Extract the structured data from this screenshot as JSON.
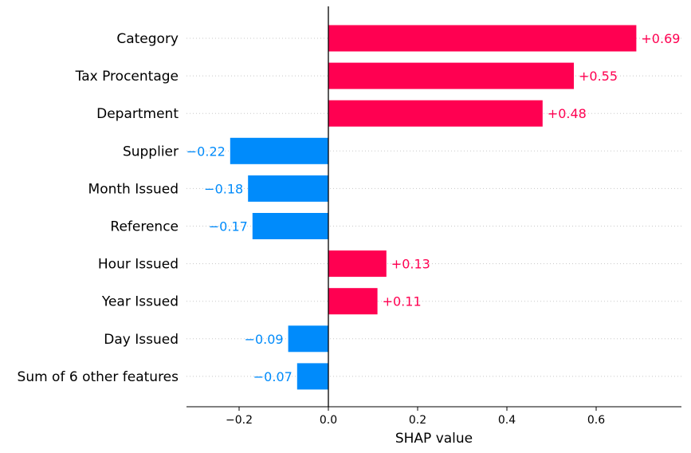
{
  "chart_data": {
    "type": "bar",
    "orientation": "horizontal",
    "xlabel": "SHAP value",
    "xlim": [
      -0.315,
      0.78
    ],
    "xticks": [
      -0.2,
      0.0,
      0.2,
      0.4,
      0.6
    ],
    "xtick_labels": [
      "−0.2",
      "0.0",
      "0.2",
      "0.4",
      "0.6"
    ],
    "grid": "dotted horizontal guide lines per row",
    "colors": {
      "positive": "#ff0051",
      "negative": "#008bfb",
      "zero_line": "#000000"
    },
    "bars": [
      {
        "label": "Category",
        "value": 0.69,
        "value_label": "+0.69"
      },
      {
        "label": "Tax Procentage",
        "value": 0.55,
        "value_label": "+0.55"
      },
      {
        "label": "Department",
        "value": 0.48,
        "value_label": "+0.48"
      },
      {
        "label": "Supplier",
        "value": -0.22,
        "value_label": "−0.22"
      },
      {
        "label": "Month Issued",
        "value": -0.18,
        "value_label": "−0.18"
      },
      {
        "label": "Reference",
        "value": -0.17,
        "value_label": "−0.17"
      },
      {
        "label": "Hour Issued",
        "value": 0.13,
        "value_label": "+0.13"
      },
      {
        "label": "Year Issued",
        "value": 0.11,
        "value_label": "+0.11"
      },
      {
        "label": "Day Issued",
        "value": -0.09,
        "value_label": "−0.09"
      },
      {
        "label": "Sum of 6 other features",
        "value": -0.07,
        "value_label": "−0.07"
      }
    ]
  }
}
